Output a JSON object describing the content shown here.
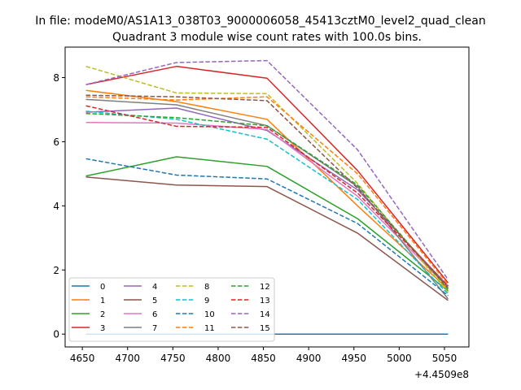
{
  "header": {
    "file_line": "In file: modeM0/AS1A13_038T03_9000006058_45413cztM0_level2_quad_clean",
    "title": "Quadrant 3 module wise count rates with 100.0s bins."
  },
  "chart_data": {
    "type": "line",
    "title": "Quadrant 3 module wise count rates with 100.0s bins.",
    "xlabel": "",
    "ylabel": "",
    "x_offset_label": "+4.4509e8",
    "x_offset": 445090000,
    "x": [
      4654,
      4754,
      4854,
      4954,
      5054
    ],
    "xlim": [
      4631,
      5077
    ],
    "ylim": [
      -0.4,
      8.95
    ],
    "xticks": [
      4650,
      4700,
      4750,
      4800,
      4850,
      4900,
      4950,
      5000,
      5050
    ],
    "xtick_labels": [
      "4650",
      "4700",
      "4750",
      "4800",
      "4850",
      "4900",
      "4950",
      "5000",
      "5050"
    ],
    "yticks": [
      0,
      2,
      4,
      6,
      8
    ],
    "ytick_labels": [
      "0",
      "2",
      "4",
      "6",
      "8"
    ],
    "grid": false,
    "legend_position": "lower-left",
    "legend_columns": 4,
    "series": [
      {
        "name": "0",
        "color": "#1f77b4",
        "dash": "solid",
        "values": [
          0.0,
          0.0,
          0.0,
          0.0,
          0.0
        ]
      },
      {
        "name": "1",
        "color": "#ff7f0e",
        "dash": "solid",
        "values": [
          7.6,
          7.25,
          6.7,
          4.0,
          1.4
        ]
      },
      {
        "name": "2",
        "color": "#2ca02c",
        "dash": "solid",
        "values": [
          4.93,
          5.53,
          5.23,
          3.6,
          1.35
        ]
      },
      {
        "name": "3",
        "color": "#d62728",
        "dash": "solid",
        "values": [
          7.78,
          8.35,
          7.98,
          5.1,
          1.6
        ]
      },
      {
        "name": "4",
        "color": "#9467bd",
        "dash": "solid",
        "values": [
          6.92,
          7.05,
          6.35,
          4.5,
          1.5
        ]
      },
      {
        "name": "5",
        "color": "#8c564b",
        "dash": "solid",
        "values": [
          4.9,
          4.65,
          4.6,
          3.15,
          1.05
        ]
      },
      {
        "name": "6",
        "color": "#e377c2",
        "dash": "solid",
        "values": [
          6.6,
          6.58,
          6.38,
          4.3,
          1.45
        ]
      },
      {
        "name": "7",
        "color": "#7f7f7f",
        "dash": "solid",
        "values": [
          7.32,
          7.15,
          6.5,
          4.6,
          1.1
        ]
      },
      {
        "name": "8",
        "color": "#bcbd22",
        "dash": "dashed",
        "values": [
          8.35,
          7.52,
          7.5,
          4.7,
          1.3
        ]
      },
      {
        "name": "9",
        "color": "#17becf",
        "dash": "dashed",
        "values": [
          6.95,
          6.7,
          6.08,
          4.2,
          1.25
        ]
      },
      {
        "name": "10",
        "color": "#1f77b4",
        "dash": "dashed",
        "values": [
          5.47,
          4.96,
          4.84,
          3.45,
          1.2
        ]
      },
      {
        "name": "11",
        "color": "#ff7f0e",
        "dash": "dashed",
        "values": [
          7.4,
          7.3,
          7.4,
          5.0,
          1.55
        ]
      },
      {
        "name": "12",
        "color": "#2ca02c",
        "dash": "dashed",
        "values": [
          6.88,
          6.75,
          6.5,
          4.65,
          1.4
        ]
      },
      {
        "name": "13",
        "color": "#d62728",
        "dash": "dashed",
        "values": [
          7.12,
          6.48,
          6.45,
          4.4,
          1.5
        ]
      },
      {
        "name": "14",
        "color": "#9467bd",
        "dash": "dashed",
        "values": [
          7.78,
          8.47,
          8.53,
          5.75,
          1.7
        ]
      },
      {
        "name": "15",
        "color": "#8c564b",
        "dash": "dashed",
        "values": [
          7.45,
          7.4,
          7.28,
          4.55,
          1.45
        ]
      }
    ]
  }
}
